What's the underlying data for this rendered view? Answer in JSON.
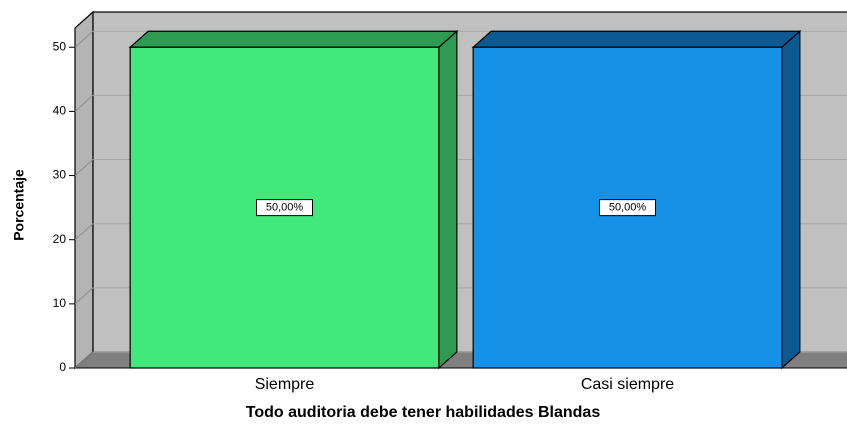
{
  "chart_data": {
    "type": "bar3d",
    "categories": [
      "Siempre",
      "Casi siempre"
    ],
    "values": [
      50,
      50
    ],
    "value_labels": [
      "50,00%",
      "50,00%"
    ],
    "colors": [
      "#42e87c",
      "#1591e8"
    ],
    "side_colors": [
      "#2e9a52",
      "#0c5a8f"
    ],
    "ylim": [
      0,
      53
    ],
    "yticks": [
      0,
      10,
      20,
      30,
      40,
      50
    ],
    "ylabel": "Porcentaje",
    "xlabel": "Todo auditoria debe tener habilidades Blandas",
    "grid": true
  }
}
